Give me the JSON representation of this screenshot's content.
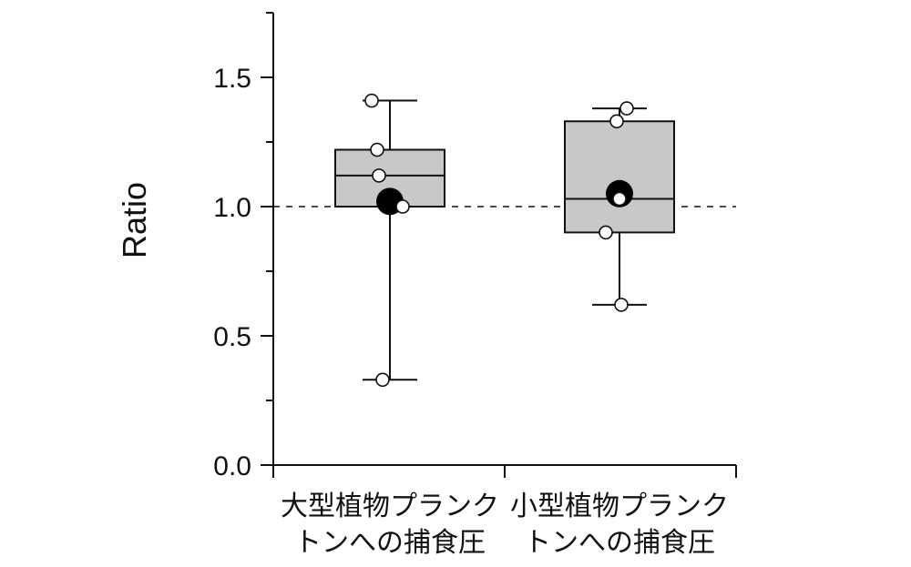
{
  "chart_data": {
    "type": "box",
    "ylabel": "Ratio",
    "xlabel": "",
    "ylim": [
      0,
      1.75
    ],
    "yticks": [
      0.0,
      0.5,
      1.0,
      1.5
    ],
    "ytick_labels": [
      "0.0",
      "0.5",
      "1.0",
      "1.5"
    ],
    "minor_yticks": [
      0.25,
      0.75,
      1.25,
      1.75
    ],
    "reference_line": 1.0,
    "grid": false,
    "categories": [
      {
        "line1": "大型植物プランク",
        "line2": "トンへの捕食圧"
      },
      {
        "line1": "小型植物プランク",
        "line2": "トンへの捕食圧"
      }
    ],
    "boxes": [
      {
        "whisker_low": 0.33,
        "q1": 1.0,
        "median": 1.12,
        "q3": 1.22,
        "whisker_high": 1.41,
        "mean": 1.02,
        "points": [
          1.41,
          1.22,
          1.12,
          1.0,
          0.33
        ]
      },
      {
        "whisker_low": 0.62,
        "q1": 0.9,
        "median": 1.03,
        "q3": 1.33,
        "whisker_high": 1.38,
        "mean": 1.05,
        "points": [
          1.38,
          1.33,
          1.03,
          0.9,
          0.62
        ]
      }
    ],
    "colors": {
      "box_fill": "#c8c8c8",
      "stroke": "#111111",
      "point_fill": "#ffffff",
      "mean_fill": "#000000"
    }
  }
}
